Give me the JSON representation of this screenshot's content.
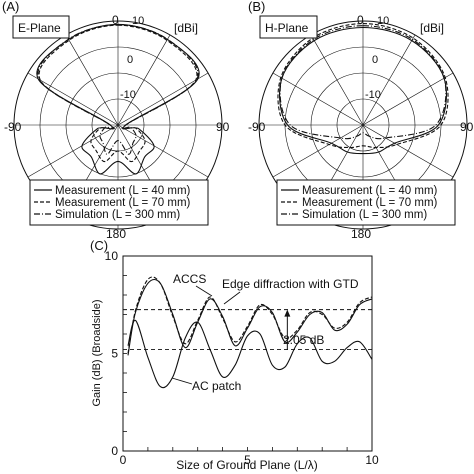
{
  "panels": {
    "a": {
      "tag": "(A)",
      "plane": "E-Plane",
      "unit": "[dBi]",
      "ring_labels": [
        "10",
        "0",
        "-10"
      ],
      "angle_labels": {
        "top": "0",
        "left": "-90",
        "right": "90",
        "bottom": "180"
      },
      "legend": [
        "Measurement (L = 40 mm)",
        "Measurement (L = 70 mm)",
        "Simulation (L = 300 mm)"
      ]
    },
    "b": {
      "tag": "(B)",
      "plane": "H-Plane",
      "unit": "[dBi]",
      "ring_labels": [
        "10",
        "0",
        "-10"
      ],
      "angle_labels": {
        "top": "0",
        "left": "-90",
        "right": "90",
        "bottom": "180"
      },
      "legend": [
        "Measurement (L = 40 mm)",
        "Measurement (L = 70 mm)",
        "Simulation (L = 300 mm)"
      ]
    },
    "c": {
      "tag": "(C)",
      "annotations": {
        "accs": "ACCS",
        "edge": "Edge diffraction with GTD",
        "delta": "2.05 dB",
        "patch": "AC patch"
      }
    }
  },
  "chart_data": [
    {
      "type": "polar",
      "panel": "A",
      "title": "E-Plane",
      "unit": "dBi",
      "r_range": [
        -30,
        10
      ],
      "ring_labels": [
        10,
        0,
        -10
      ],
      "angle_labels": [
        0,
        -90,
        90,
        180
      ],
      "series": [
        {
          "name": "Measurement (L = 40 mm)",
          "style": "solid",
          "angles": [
            0,
            30,
            60,
            90,
            100,
            120,
            140,
            160,
            180,
            200,
            220,
            240,
            260,
            270,
            300,
            330
          ],
          "values": [
            8.7,
            8.0,
            5.5,
            -27,
            -22,
            -14,
            -14,
            -10,
            -16,
            -10,
            -14,
            -14,
            -22,
            -27,
            5.5,
            8.0
          ]
        },
        {
          "name": "Measurement (L = 70 mm)",
          "style": "dashed",
          "angles": [
            0,
            30,
            60,
            90,
            100,
            120,
            140,
            160,
            180,
            200,
            220,
            240,
            260,
            270,
            300,
            330
          ],
          "values": [
            8.4,
            7.6,
            4.5,
            -27,
            -23,
            -18,
            -17,
            -15,
            -20,
            -15,
            -17,
            -18,
            -23,
            -27,
            4.5,
            7.6
          ]
        },
        {
          "name": "Simulation (L = 300 mm)",
          "style": "dash-dot",
          "angles": [
            0,
            30,
            60,
            90,
            100,
            120,
            140,
            160,
            180,
            200,
            220,
            240,
            260,
            270,
            300,
            330
          ],
          "values": [
            8.6,
            8.1,
            5.0,
            -27,
            -25,
            -22,
            -21,
            -18,
            -24,
            -18,
            -21,
            -22,
            -25,
            -27,
            5.0,
            8.1
          ]
        }
      ]
    },
    {
      "type": "polar",
      "panel": "B",
      "title": "H-Plane",
      "unit": "dBi",
      "r_range": [
        -30,
        10
      ],
      "ring_labels": [
        10,
        0,
        -10
      ],
      "angle_labels": [
        0,
        -90,
        90,
        180
      ],
      "series": [
        {
          "name": "Measurement (L = 40 mm)",
          "style": "solid",
          "angles": [
            0,
            30,
            60,
            90,
            120,
            150,
            180,
            210,
            240,
            270,
            300,
            330
          ],
          "values": [
            7.5,
            7.5,
            6.0,
            -1,
            -16,
            -18,
            -19,
            -18,
            -16,
            -1,
            6.0,
            7.5
          ]
        },
        {
          "name": "Measurement (L = 70 mm)",
          "style": "dashed",
          "angles": [
            0,
            30,
            60,
            90,
            120,
            150,
            180,
            210,
            240,
            270,
            300,
            330
          ],
          "values": [
            9.0,
            8.6,
            6.5,
            0,
            -15,
            -20,
            -22,
            -20,
            -15,
            0,
            6.5,
            8.6
          ]
        },
        {
          "name": "Simulation (L = 300 mm)",
          "style": "dash-dot",
          "angles": [
            0,
            30,
            60,
            90,
            120,
            150,
            180,
            210,
            240,
            270,
            300,
            330
          ],
          "values": [
            8.2,
            8.0,
            6.0,
            -2,
            -20,
            -25,
            -27,
            -25,
            -20,
            -2,
            6.0,
            8.0
          ]
        }
      ]
    },
    {
      "type": "line",
      "panel": "C",
      "xlabel": "Size of Ground Plane (L/λ)",
      "ylabel": "Gain (dB) (Broadside)",
      "xlim": [
        0,
        10
      ],
      "ylim": [
        0,
        10
      ],
      "xticks": [
        0,
        5,
        10
      ],
      "yticks": [
        0,
        5,
        10
      ],
      "series": [
        {
          "name": "ACCS",
          "style": "solid",
          "x": [
            0.2,
            0.5,
            1.0,
            1.5,
            2.0,
            2.5,
            3.0,
            3.5,
            4.0,
            4.5,
            5.0,
            5.5,
            6.0,
            6.5,
            7.0,
            7.5,
            8.0,
            8.5,
            9.0,
            9.5,
            10.0
          ],
          "y": [
            4.9,
            7.1,
            8.6,
            8.6,
            7.0,
            5.3,
            6.6,
            7.8,
            6.9,
            5.4,
            6.3,
            7.4,
            7.1,
            5.6,
            6.1,
            7.0,
            7.1,
            6.2,
            6.5,
            7.5,
            7.8
          ]
        },
        {
          "name": "Edge diffraction with GTD",
          "style": "dashed",
          "x": [
            0.2,
            0.5,
            1.0,
            1.5,
            2.0,
            2.5,
            3.0,
            3.5,
            4.0,
            4.5,
            5.0,
            5.5,
            6.0,
            6.5,
            7.0,
            7.5,
            8.0,
            8.5,
            9.0,
            9.5,
            10.0
          ],
          "y": [
            5.0,
            7.2,
            8.8,
            8.6,
            6.9,
            5.5,
            6.7,
            7.9,
            6.8,
            5.6,
            6.4,
            7.5,
            7.0,
            5.8,
            6.2,
            7.1,
            7.0,
            6.3,
            6.6,
            7.6,
            7.9
          ]
        },
        {
          "name": "AC patch",
          "style": "solid",
          "x": [
            0.2,
            0.5,
            1.0,
            1.5,
            2.0,
            2.5,
            3.0,
            3.5,
            4.0,
            4.5,
            5.0,
            5.5,
            6.0,
            6.5,
            7.0,
            7.5,
            8.0,
            8.5,
            9.0,
            9.5,
            10.0
          ],
          "y": [
            5.4,
            6.7,
            4.8,
            3.3,
            3.8,
            5.8,
            6.6,
            5.2,
            3.8,
            4.4,
            5.9,
            6.0,
            4.4,
            4.3,
            5.5,
            5.8,
            4.6,
            4.6,
            5.3,
            5.6,
            4.7
          ]
        }
      ],
      "reference_lines": [
        7.25,
        5.2
      ],
      "annotation": {
        "text": "2.05 dB",
        "from": 5.2,
        "to": 7.25,
        "x": 6.6
      }
    }
  ]
}
